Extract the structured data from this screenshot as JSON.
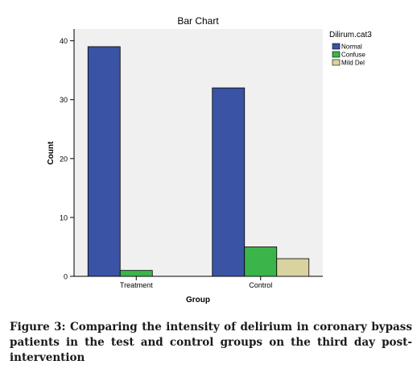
{
  "chart_data": {
    "type": "bar",
    "title": "Bar Chart",
    "xlabel": "Group",
    "ylabel": "Count",
    "categories": [
      "Treatment",
      "Control"
    ],
    "ylim": [
      0,
      42
    ],
    "yticks": [
      "0",
      "10",
      "20",
      "30",
      "40"
    ],
    "legend": {
      "title": "Dilirum.cat3",
      "placement": "right"
    },
    "series": [
      {
        "name": "Normal",
        "color": "#3a53a4",
        "values": [
          39,
          32
        ]
      },
      {
        "name": "Confuse",
        "color": "#3bb54a",
        "values": [
          1,
          5
        ]
      },
      {
        "name": "Mild Del",
        "color": "#d9d3a0",
        "values": [
          0,
          3
        ]
      }
    ]
  },
  "caption": "Figure 3: Comparing the intensity of delirium in coronary bypass patients in the test and control groups on the third day post-intervention"
}
